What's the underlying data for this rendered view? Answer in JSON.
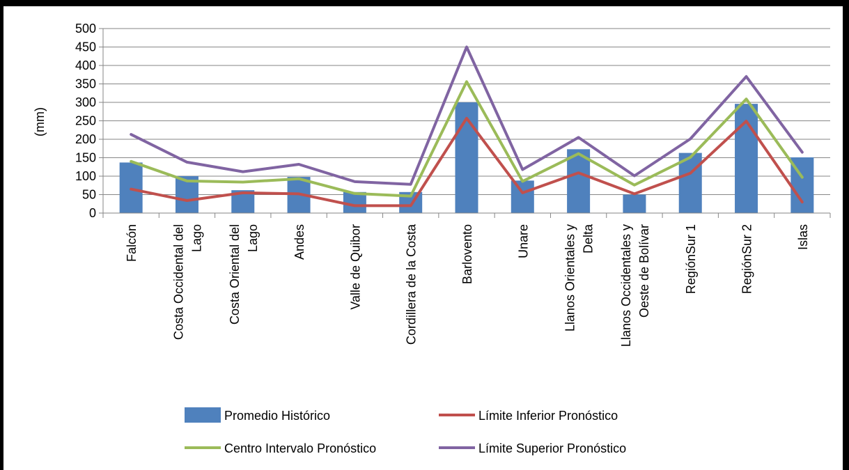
{
  "chart_data": {
    "type": "bar",
    "title": "",
    "xlabel": "",
    "ylabel": "(mm)",
    "ylim": [
      0,
      500
    ],
    "yticks": [
      0,
      50,
      100,
      150,
      200,
      250,
      300,
      350,
      400,
      450,
      500
    ],
    "grid": true,
    "legend_position": "bottom",
    "categories": [
      [
        "Falcón"
      ],
      [
        "Costa Occidental del",
        "Lago"
      ],
      [
        "Costa Oriental del",
        "Lago"
      ],
      [
        "Andes"
      ],
      [
        "Valle de Quibor"
      ],
      [
        "Cordillera de la Costa"
      ],
      [
        "Barlovento"
      ],
      [
        "Unare"
      ],
      [
        "Llanos Orientales y",
        "Delta"
      ],
      [
        "Llanos Occidentales y",
        "Oeste de Bolívar"
      ],
      [
        "RegiónSur 1"
      ],
      [
        "RegiónSur 2"
      ],
      [
        "Islas"
      ]
    ],
    "series": [
      {
        "name": "Promedio Histórico",
        "kind": "bar",
        "color": "#4F81BD",
        "values": [
          137,
          100,
          62,
          98,
          57,
          57,
          300,
          88,
          173,
          50,
          163,
          296,
          151
        ]
      },
      {
        "name": "Límite Inferior Pronóstico",
        "kind": "line",
        "color": "#C0504D",
        "values": [
          65,
          34,
          55,
          52,
          20,
          20,
          257,
          55,
          109,
          52,
          108,
          249,
          30
        ]
      },
      {
        "name": "Centro Intervalo Pronóstico",
        "kind": "line",
        "color": "#9BBB59",
        "values": [
          140,
          87,
          84,
          93,
          53,
          46,
          356,
          86,
          161,
          76,
          151,
          309,
          97
        ]
      },
      {
        "name": "Límite Superior Pronóstico",
        "kind": "line",
        "color": "#8064A2",
        "values": [
          213,
          138,
          112,
          132,
          85,
          78,
          450,
          118,
          205,
          101,
          201,
          370,
          165
        ]
      }
    ]
  }
}
